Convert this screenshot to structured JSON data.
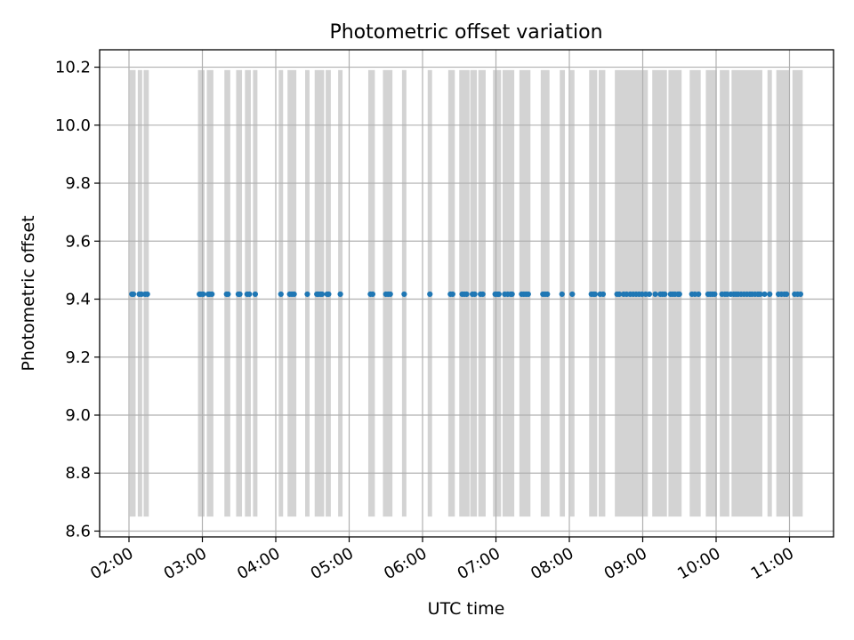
{
  "chart_data": {
    "type": "scatter",
    "title": "Photometric offset variation",
    "xlabel": "UTC time",
    "ylabel": "Photometric offset",
    "xlim_hours": [
      1.6,
      11.6
    ],
    "ylim": [
      8.58,
      10.26
    ],
    "grid": true,
    "x_ticks": [
      {
        "value": 2,
        "label": "02:00"
      },
      {
        "value": 3,
        "label": "03:00"
      },
      {
        "value": 4,
        "label": "04:00"
      },
      {
        "value": 5,
        "label": "05:00"
      },
      {
        "value": 6,
        "label": "06:00"
      },
      {
        "value": 7,
        "label": "07:00"
      },
      {
        "value": 8,
        "label": "08:00"
      },
      {
        "value": 9,
        "label": "09:00"
      },
      {
        "value": 10,
        "label": "10:00"
      },
      {
        "value": 11,
        "label": "11:00"
      }
    ],
    "y_ticks": [
      {
        "value": 8.6,
        "label": "8.6"
      },
      {
        "value": 8.8,
        "label": "8.8"
      },
      {
        "value": 9.0,
        "label": "9.0"
      },
      {
        "value": 9.2,
        "label": "9.2"
      },
      {
        "value": 9.4,
        "label": "9.4"
      },
      {
        "value": 9.6,
        "label": "9.6"
      },
      {
        "value": 9.8,
        "label": "9.8"
      },
      {
        "value": 10.0,
        "label": "10.0"
      },
      {
        "value": 10.2,
        "label": "10.2"
      }
    ],
    "series": [
      {
        "name": "photometric offset",
        "color": "#1f77b4",
        "y_value": 9.417,
        "x_hours": [
          2.04,
          2.06,
          2.14,
          2.17,
          2.22,
          2.25,
          2.96,
          2.98,
          3.01,
          3.08,
          3.1,
          3.13,
          3.33,
          3.35,
          3.49,
          3.51,
          3.61,
          3.64,
          3.72,
          4.07,
          4.19,
          4.22,
          4.25,
          4.43,
          4.56,
          4.58,
          4.61,
          4.63,
          4.7,
          4.72,
          4.88,
          5.29,
          5.32,
          5.5,
          5.53,
          5.56,
          5.75,
          6.1,
          6.38,
          6.41,
          6.54,
          6.57,
          6.6,
          6.68,
          6.71,
          6.79,
          6.82,
          6.99,
          7.02,
          7.04,
          7.12,
          7.16,
          7.2,
          7.22,
          7.35,
          7.38,
          7.41,
          7.44,
          7.64,
          7.67,
          7.7,
          7.9,
          8.04,
          8.3,
          8.33,
          8.35,
          8.42,
          8.46,
          8.65,
          8.68,
          8.74,
          8.78,
          8.83,
          8.87,
          8.91,
          8.95,
          8.99,
          9.04,
          9.09,
          9.17,
          9.24,
          9.27,
          9.3,
          9.38,
          9.41,
          9.44,
          9.48,
          9.5,
          9.67,
          9.71,
          9.76,
          9.89,
          9.92,
          9.95,
          9.98,
          10.08,
          10.12,
          10.15,
          10.2,
          10.24,
          10.27,
          10.3,
          10.34,
          10.38,
          10.42,
          10.46,
          10.49,
          10.53,
          10.57,
          10.6,
          10.66,
          10.73,
          10.85,
          10.89,
          10.93,
          10.96,
          11.07,
          11.11,
          11.15
        ]
      }
    ],
    "shaded_spans": {
      "color": "#d3d3d3",
      "y_range": [
        8.65,
        10.19
      ],
      "intervals_hours": [
        [
          2.01,
          2.09
        ],
        [
          2.12,
          2.18
        ],
        [
          2.2,
          2.27
        ],
        [
          2.94,
          3.03
        ],
        [
          3.06,
          3.15
        ],
        [
          3.3,
          3.38
        ],
        [
          3.46,
          3.54
        ],
        [
          3.58,
          3.66
        ],
        [
          3.69,
          3.75
        ],
        [
          4.04,
          4.1
        ],
        [
          4.16,
          4.28
        ],
        [
          4.4,
          4.46
        ],
        [
          4.53,
          4.66
        ],
        [
          4.68,
          4.75
        ],
        [
          4.85,
          4.91
        ],
        [
          5.26,
          5.35
        ],
        [
          5.46,
          5.59
        ],
        [
          5.72,
          5.78
        ],
        [
          6.07,
          6.13
        ],
        [
          6.35,
          6.44
        ],
        [
          6.5,
          6.64
        ],
        [
          6.65,
          6.74
        ],
        [
          6.76,
          6.86
        ],
        [
          6.96,
          7.07
        ],
        [
          7.09,
          7.25
        ],
        [
          7.32,
          7.47
        ],
        [
          7.61,
          7.73
        ],
        [
          7.87,
          7.94
        ],
        [
          8.01,
          8.07
        ],
        [
          8.27,
          8.38
        ],
        [
          8.4,
          8.49
        ],
        [
          8.62,
          9.07
        ],
        [
          9.13,
          9.33
        ],
        [
          9.35,
          9.53
        ],
        [
          9.64,
          9.79
        ],
        [
          9.86,
          10.01
        ],
        [
          10.05,
          10.18
        ],
        [
          10.21,
          10.63
        ],
        [
          10.7,
          10.76
        ],
        [
          10.82,
          11.0
        ],
        [
          11.04,
          11.18
        ]
      ]
    }
  }
}
